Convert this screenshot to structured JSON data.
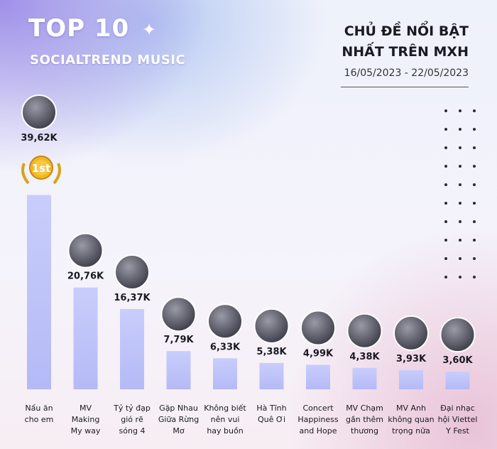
{
  "header": {
    "brand_title": "TOP 10",
    "brand_subtitle": "SOCIALTREND MUSIC",
    "heading_line1": "CHỦ ĐỀ NỔI BẬT",
    "heading_line2": "NHẤT TRÊN MXH",
    "date_range": "16/05/2023 - 22/05/2023"
  },
  "medal": {
    "rank_label": "1st",
    "icon": "gold-medal-icon"
  },
  "colors": {
    "bar_top": "#c7ccfb",
    "bar_bottom": "#b6bcf8",
    "text": "#1a1a22"
  },
  "chart_data": {
    "type": "bar",
    "ylim": [
      0,
      42
    ],
    "categories": [
      [
        "Nấu ăn",
        "cho em"
      ],
      [
        "MV",
        "Making",
        "My way"
      ],
      [
        "Tỷ tỷ đạp",
        "gió rẽ",
        "sóng 4"
      ],
      [
        "Gặp Nhau",
        "Giữa Rừng",
        "Mơ"
      ],
      [
        "Không biết",
        "nên vui",
        "hay buồn"
      ],
      [
        "Hà Tĩnh",
        "Quê Ơi"
      ],
      [
        "Concert",
        "Happiness",
        "and Hope"
      ],
      [
        "MV Chạm",
        "gần thêm",
        "thương"
      ],
      [
        "MV Anh",
        "không quan",
        "trọng nữa"
      ],
      [
        "Đại nhạc",
        "hội Viettel",
        "Y Fest"
      ]
    ],
    "values": [
      39.62,
      20.76,
      16.37,
      7.79,
      6.33,
      5.38,
      4.99,
      4.38,
      3.93,
      3.6
    ],
    "value_labels": [
      "39,62K",
      "20,76K",
      "16,37K",
      "7,79K",
      "6,33K",
      "5,38K",
      "4,99K",
      "4,38K",
      "3,93K",
      "3,60K"
    ],
    "grid": false,
    "legend": "none"
  }
}
